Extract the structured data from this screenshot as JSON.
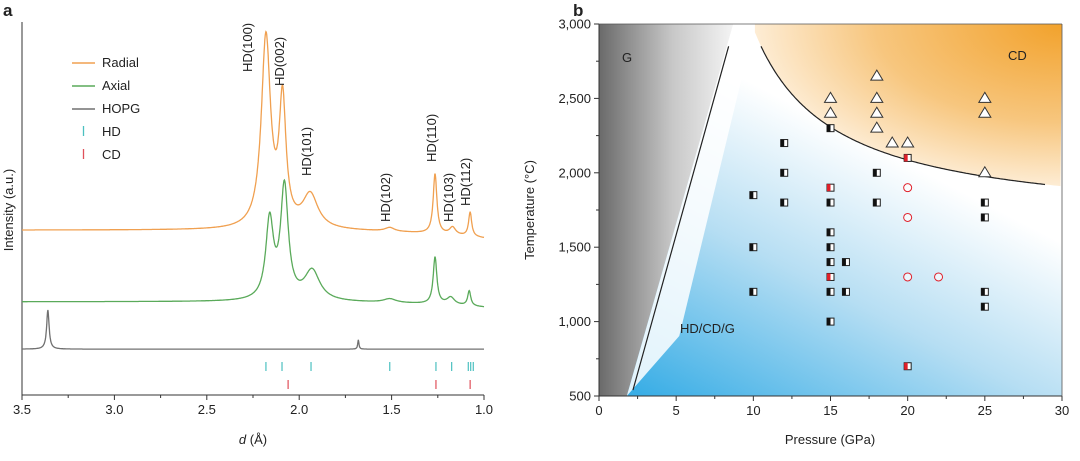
{
  "chart_data": [
    {
      "panel_label": "a",
      "type": "line",
      "xlabel_italic": "d",
      "xlabel_unit": " (Å)",
      "ylabel": "Intensity (a.u.)",
      "xlim": [
        3.5,
        1.0
      ],
      "x_reversed": true,
      "xticks": [
        "3.5",
        "3.0",
        "2.5",
        "2.0",
        "1.5",
        "1.0"
      ],
      "xtick_values": [
        3.5,
        3.0,
        2.5,
        2.0,
        1.5,
        1.0
      ],
      "ylim": [
        0,
        100
      ],
      "grid": false,
      "legend_position": "top-left",
      "series": [
        {
          "name": "Radial",
          "color": "#f0a050",
          "baseline": [
            44.2,
            42.0
          ],
          "peaks_d_height_hwhm": [
            [
              2.18,
              51,
              0.03
            ],
            [
              2.09,
              33,
              0.022
            ],
            [
              1.94,
              9,
              0.05
            ],
            [
              1.51,
              1,
              0.03
            ],
            [
              1.265,
              16,
              0.012
            ],
            [
              1.17,
              2,
              0.02
            ],
            [
              1.075,
              6.5,
              0.01
            ]
          ]
        },
        {
          "name": "Axial",
          "color": "#5aaa5a",
          "baseline": [
            25.0,
            23.5
          ],
          "peaks_d_height_hwhm": [
            [
              2.16,
              21,
              0.025
            ],
            [
              2.08,
              30,
              0.025
            ],
            [
              1.93,
              8,
              0.05
            ],
            [
              1.51,
              1,
              0.04
            ],
            [
              1.265,
              12.5,
              0.012
            ],
            [
              1.18,
              2,
              0.025
            ],
            [
              1.08,
              4,
              0.01
            ]
          ]
        },
        {
          "name": "HOPG",
          "color": "#707070",
          "baseline": [
            12.3,
            12.3
          ],
          "peaks_d_height_hwhm": [
            [
              3.36,
              10.5,
              0.008
            ],
            [
              1.68,
              2.5,
              0.004
            ]
          ]
        }
      ],
      "reflection_markers": [
        {
          "name": "HD",
          "color": "#4cc0c0",
          "d": [
            2.18,
            2.093,
            1.936,
            1.51,
            1.26,
            1.175,
            1.085,
            1.072,
            1.058
          ]
        },
        {
          "name": "CD",
          "color": "#e0505a",
          "d": [
            2.06,
            1.26,
            1.075
          ]
        }
      ],
      "peak_labels": [
        "HD(100)",
        "HD(002)",
        "HD(101)",
        "HD(102)",
        "HD(110)",
        "HD(103)",
        "HD(112)"
      ]
    },
    {
      "panel_label": "b",
      "type": "scatter",
      "xlabel": "Pressure (GPa)",
      "ylabel": "Temperature (°C)",
      "xlim": [
        0,
        30
      ],
      "ylim": [
        500,
        3000
      ],
      "xticks": [
        "0",
        "5",
        "10",
        "15",
        "20",
        "25",
        "30"
      ],
      "xtick_values": [
        0,
        5,
        10,
        15,
        20,
        25,
        30
      ],
      "yticks": [
        "500",
        "1,000",
        "1,500",
        "2,000",
        "2,500",
        "3,000"
      ],
      "ytick_values": [
        500,
        1000,
        1500,
        2000,
        2500,
        3000
      ],
      "grid": false,
      "region_labels": [
        "G",
        "CD",
        "HD/CD/G"
      ],
      "colors": {
        "G": "#6e6e6e",
        "CD": "#f2a22c",
        "HD/CD/G": "#3fb0e8",
        "red_marker": "#e0202a"
      },
      "series": [
        {
          "marker": "open-triangle",
          "points": [
            [
              18,
              2650
            ],
            [
              15,
              2500
            ],
            [
              18,
              2500
            ],
            [
              25,
              2500
            ],
            [
              15,
              2400
            ],
            [
              18,
              2400
            ],
            [
              25,
              2400
            ],
            [
              18,
              2300
            ],
            [
              19,
              2200
            ],
            [
              20,
              2200
            ],
            [
              25,
              2000
            ]
          ]
        },
        {
          "marker": "half-filled-square-black",
          "points": [
            [
              15,
              2300
            ],
            [
              12,
              2200
            ],
            [
              12,
              2000
            ],
            [
              18,
              2000
            ],
            [
              10,
              1850
            ],
            [
              12,
              1800
            ],
            [
              15,
              1800
            ],
            [
              18,
              1800
            ],
            [
              25,
              1800
            ],
            [
              25,
              1700
            ],
            [
              15,
              1600
            ],
            [
              10,
              1500
            ],
            [
              15,
              1500
            ],
            [
              15,
              1400
            ],
            [
              16,
              1400
            ],
            [
              10,
              1200
            ],
            [
              15,
              1200
            ],
            [
              16,
              1200
            ],
            [
              25,
              1200
            ],
            [
              25,
              1100
            ],
            [
              15,
              1000
            ]
          ]
        },
        {
          "marker": "half-filled-square-red",
          "points": [
            [
              20,
              2100
            ],
            [
              15,
              1900
            ],
            [
              15,
              1300
            ],
            [
              20,
              700
            ]
          ]
        },
        {
          "marker": "open-circle-red",
          "points": [
            [
              20,
              1900
            ],
            [
              20,
              1700
            ],
            [
              20,
              1300
            ],
            [
              22,
              1300
            ]
          ]
        }
      ],
      "boundaries": {
        "G_line": [
          [
            2.2,
            540
          ],
          [
            8.4,
            2850
          ]
        ],
        "CD_curve": {
          "from_P": 10.5,
          "to_P": 29
        }
      }
    }
  ]
}
